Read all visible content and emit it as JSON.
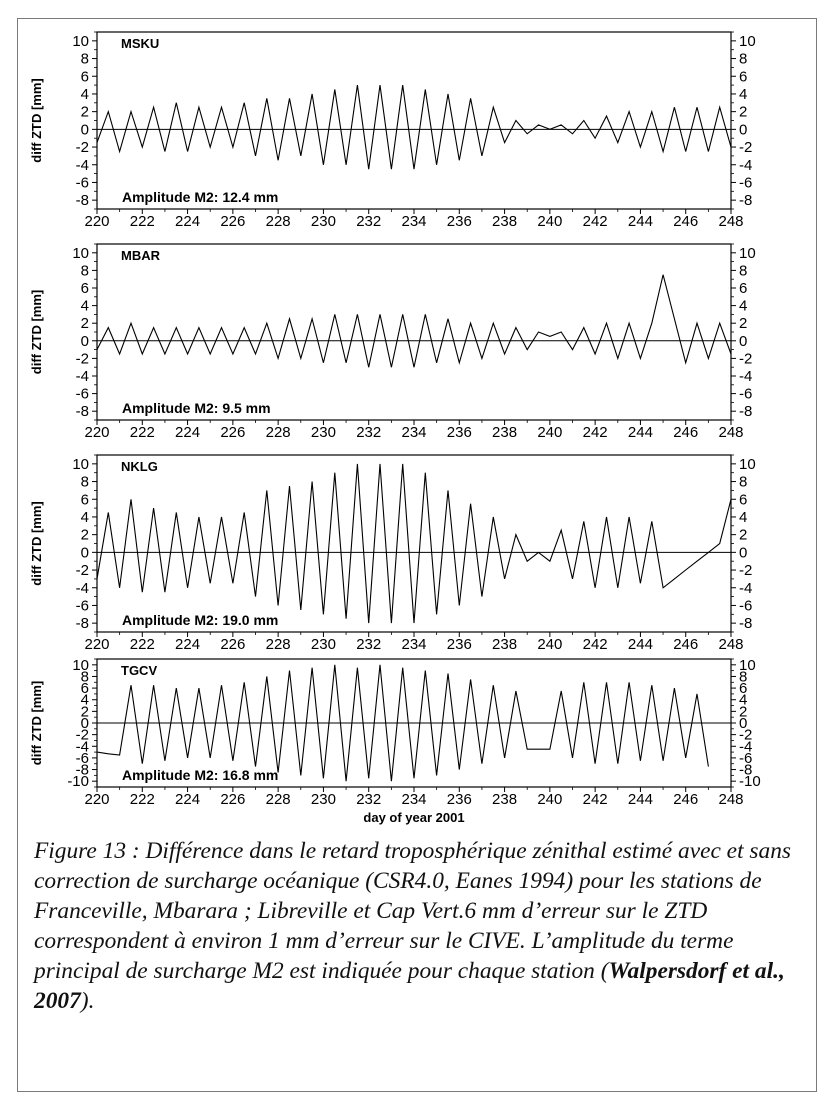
{
  "chart_data": [
    {
      "type": "line",
      "station": "MSKU",
      "amplitude_label": "Amplitude M2: 12.4 mm",
      "xlim": [
        220,
        248
      ],
      "ylim": [
        -9,
        11
      ],
      "xticks": [
        220,
        222,
        224,
        226,
        228,
        230,
        232,
        234,
        236,
        238,
        240,
        242,
        244,
        246,
        248
      ],
      "yticks": [
        -8,
        -6,
        -4,
        -2,
        0,
        2,
        4,
        6,
        8,
        10
      ],
      "ylabel": "diff ZTD [mm]",
      "xlabel": "",
      "grid": false,
      "series": [
        {
          "x": [
            220.0,
            220.5,
            221.0,
            221.5,
            222.0,
            222.5,
            223.0,
            223.5,
            224.0,
            224.5,
            225.0,
            225.5,
            226.0,
            226.5,
            227.0,
            227.5,
            228.0,
            228.5,
            229.0,
            229.5,
            230.0,
            230.5,
            231.0,
            231.5,
            232.0,
            232.5,
            233.0,
            233.5,
            234.0,
            234.5,
            235.0,
            235.5,
            236.0,
            236.5,
            237.0,
            237.5,
            238.0,
            238.5,
            239.0,
            239.5,
            240.0,
            240.5,
            241.0,
            241.5,
            242.0,
            242.5,
            243.0,
            243.5,
            244.0,
            244.5,
            245.0,
            245.5,
            246.0,
            246.5,
            247.0,
            247.5,
            248.0
          ],
          "y": [
            -1.5,
            2,
            -2.5,
            2,
            -2,
            2.5,
            -2.5,
            3,
            -2.5,
            2.5,
            -2,
            2.5,
            -2,
            3,
            -3,
            3.5,
            -3.5,
            3.5,
            -3,
            4,
            -4,
            4.5,
            -4,
            5,
            -4.5,
            5,
            -4.5,
            5,
            -4.5,
            4.5,
            -4,
            4,
            -3.5,
            3.5,
            -3,
            2.5,
            -1.5,
            1,
            -0.5,
            0.5,
            0,
            0.5,
            -0.5,
            1,
            -1,
            1.5,
            -1.5,
            2,
            -2,
            2,
            -2.5,
            2.5,
            -2.5,
            2.5,
            -2.5,
            2.5,
            -2
          ]
        }
      ]
    },
    {
      "type": "line",
      "station": "MBAR",
      "amplitude_label": "Amplitude M2: 9.5 mm",
      "xlim": [
        220,
        248
      ],
      "ylim": [
        -9,
        11
      ],
      "xticks": [
        220,
        222,
        224,
        226,
        228,
        230,
        232,
        234,
        236,
        238,
        240,
        242,
        244,
        246,
        248
      ],
      "yticks": [
        -8,
        -6,
        -4,
        -2,
        0,
        2,
        4,
        6,
        8,
        10
      ],
      "ylabel": "diff ZTD [mm]",
      "xlabel": "",
      "grid": false,
      "series": [
        {
          "x": [
            220.0,
            220.5,
            221.0,
            221.5,
            222.0,
            222.5,
            223.0,
            223.5,
            224.0,
            224.5,
            225.0,
            225.5,
            226.0,
            226.5,
            227.0,
            227.5,
            228.0,
            228.5,
            229.0,
            229.5,
            230.0,
            230.5,
            231.0,
            231.5,
            232.0,
            232.5,
            233.0,
            233.5,
            234.0,
            234.5,
            235.0,
            235.5,
            236.0,
            236.5,
            237.0,
            237.5,
            238.0,
            238.5,
            239.0,
            239.5,
            240.0,
            240.5,
            241.0,
            241.5,
            242.0,
            242.5,
            243.0,
            243.5,
            244.0,
            244.5,
            245.0,
            245.5,
            246.0,
            246.5,
            247.0,
            247.5,
            248.0
          ],
          "y": [
            -1,
            1.5,
            -1.5,
            2,
            -1.5,
            1.5,
            -1.5,
            1.5,
            -1.5,
            1.5,
            -1.5,
            1.5,
            -1.5,
            1.5,
            -1.5,
            2,
            -2,
            2.5,
            -2,
            2.5,
            -2.5,
            3,
            -2.5,
            3,
            -3,
            3,
            -3,
            3,
            -3,
            3,
            -2.5,
            2.5,
            -2.5,
            2,
            -2,
            2,
            -1.5,
            1.5,
            -1,
            1,
            0.5,
            1,
            -1,
            1.5,
            -1.5,
            2,
            -2,
            2,
            -2,
            2,
            7.5,
            2.5,
            -2.5,
            2,
            -2,
            2,
            -1.5
          ]
        }
      ]
    },
    {
      "type": "line",
      "station": "NKLG",
      "amplitude_label": "Amplitude M2: 19.0 mm",
      "xlim": [
        220,
        248
      ],
      "ylim": [
        -9,
        11
      ],
      "xticks": [
        220,
        222,
        224,
        226,
        228,
        230,
        232,
        234,
        236,
        238,
        240,
        242,
        244,
        246,
        248
      ],
      "yticks": [
        -8,
        -6,
        -4,
        -2,
        0,
        2,
        4,
        6,
        8,
        10
      ],
      "ylabel": "diff ZTD [mm]",
      "xlabel": "",
      "grid": false,
      "series": [
        {
          "x": [
            220.0,
            220.5,
            221.0,
            221.5,
            222.0,
            222.5,
            223.0,
            223.5,
            224.0,
            224.5,
            225.0,
            225.5,
            226.0,
            226.5,
            227.0,
            227.5,
            228.0,
            228.5,
            229.0,
            229.5,
            230.0,
            230.5,
            231.0,
            231.5,
            232.0,
            232.5,
            233.0,
            233.5,
            234.0,
            234.5,
            235.0,
            235.5,
            236.0,
            236.5,
            237.0,
            237.5,
            238.0,
            238.5,
            239.0,
            239.5,
            240.0,
            240.5,
            241.0,
            241.5,
            242.0,
            242.5,
            243.0,
            243.5,
            244.0,
            244.5,
            245.0,
            245.5,
            246.0,
            246.5,
            247.0,
            247.5,
            248.0
          ],
          "y": [
            -3,
            4.5,
            -4,
            6,
            -4.5,
            5,
            -4.5,
            4.5,
            -4,
            4,
            -3.5,
            4,
            -3.5,
            4.5,
            -5,
            7,
            -6,
            7.5,
            -6.5,
            8,
            -7,
            9,
            -7.5,
            10,
            -8,
            10,
            -8,
            10,
            -8,
            9,
            -7,
            7,
            -6,
            5.5,
            -5,
            4,
            -3,
            2,
            -1,
            0,
            -1,
            2.5,
            -3,
            3.5,
            -4,
            4,
            -4,
            4,
            -3.5,
            3.5,
            -4,
            -3,
            -2,
            -1,
            0,
            1,
            6
          ]
        }
      ]
    },
    {
      "type": "line",
      "station": "TGCV",
      "amplitude_label": "Amplitude M2: 16.8 mm",
      "xlim": [
        220,
        248
      ],
      "ylim": [
        -11,
        11
      ],
      "xticks": [
        220,
        222,
        224,
        226,
        228,
        230,
        232,
        234,
        236,
        238,
        240,
        242,
        244,
        246,
        248
      ],
      "yticks": [
        -10,
        -8,
        -6,
        -4,
        -2,
        0,
        2,
        4,
        6,
        8,
        10
      ],
      "ylabel": "diff ZTD [mm]",
      "xlabel": "day of year 2001",
      "grid": false,
      "series": [
        {
          "x": [
            220.0,
            220.5,
            221.0,
            221.5,
            222.0,
            222.5,
            223.0,
            223.5,
            224.0,
            224.5,
            225.0,
            225.5,
            226.0,
            226.5,
            227.0,
            227.5,
            228.0,
            228.5,
            229.0,
            229.5,
            230.0,
            230.5,
            231.0,
            231.5,
            232.0,
            232.5,
            233.0,
            233.5,
            234.0,
            234.5,
            235.0,
            235.5,
            236.0,
            236.5,
            237.0,
            237.5,
            238.0,
            238.5,
            239.0,
            239.5,
            240.0,
            240.5,
            241.0,
            241.5,
            242.0,
            242.5,
            243.0,
            243.5,
            244.0,
            244.5,
            245.0,
            245.5,
            246.0,
            246.5,
            247.0
          ],
          "y": [
            -5,
            -5.3,
            -5.5,
            6.5,
            -7,
            6.5,
            -6.5,
            6,
            -6,
            6,
            -6,
            6.5,
            -6.5,
            7,
            -7.5,
            8,
            -8.5,
            9,
            -9,
            9.5,
            -9.5,
            10,
            -10,
            9.5,
            -9.5,
            10,
            -10,
            9.5,
            -9.5,
            9,
            -9,
            8.5,
            -8,
            7.5,
            -7,
            6.5,
            -6,
            5.5,
            -4.5,
            -4.5,
            -4.5,
            5.5,
            -6,
            7,
            -7,
            7,
            -7,
            7,
            -6.5,
            6.5,
            -6.5,
            6,
            -6,
            5,
            -7.5
          ]
        }
      ]
    }
  ],
  "caption": {
    "text_main": "Figure 13 : Différence dans le retard troposphérique zénithal estimé avec et sans correction de surcharge océanique (CSR4.0, Eanes 1994) pour les stations de Franceville, Mbarara ; Libreville et Cap Vert.6 mm d’erreur sur le ZTD correspondent à environ 1 mm d’erreur sur le CIVE. L’amplitude du terme principal de surcharge M2 est indiquée pour chaque station (",
    "citation": "Walpersdorf et al., 2007",
    "text_end": ")."
  }
}
